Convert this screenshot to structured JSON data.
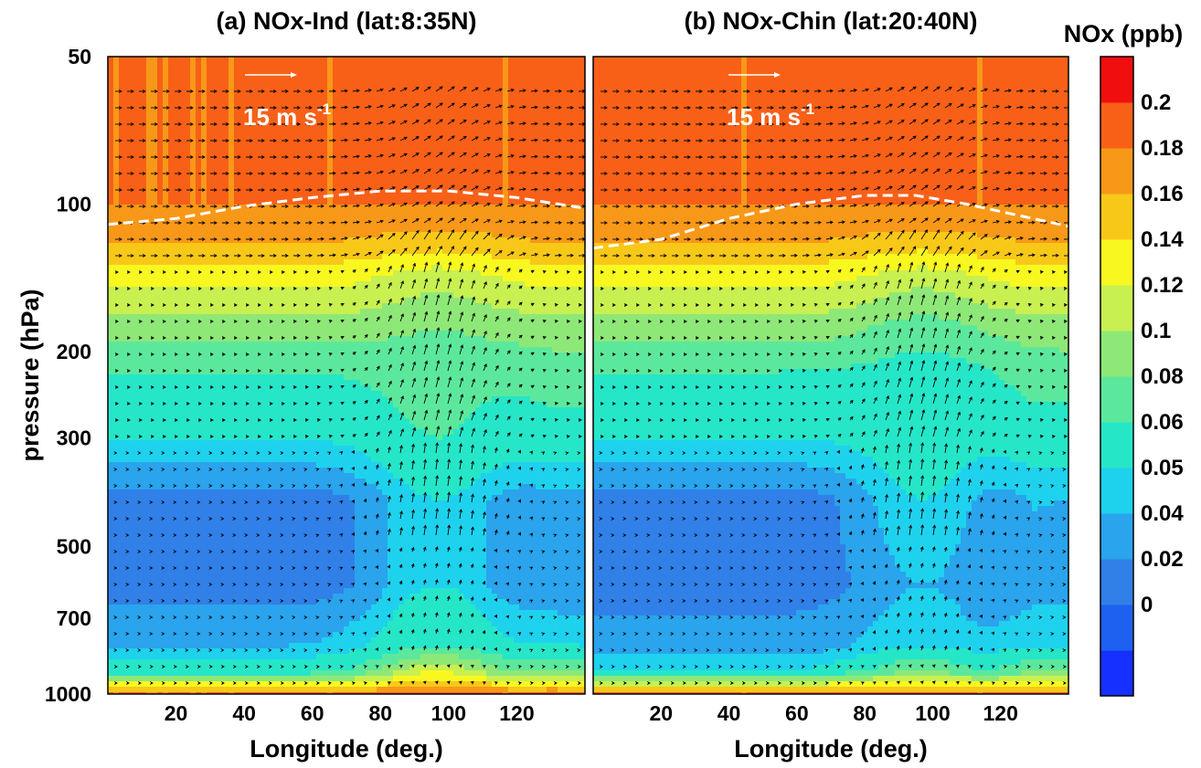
{
  "chart_data": [
    {
      "type": "heatmap",
      "title": "(a) NOx-Ind (lat:8:35N)",
      "xlabel": "Longitude (deg.)",
      "ylabel": "pressure (hPa)",
      "x_ticks": [
        20,
        40,
        60,
        80,
        100,
        120
      ],
      "y_ticks": [
        50,
        100,
        200,
        300,
        500,
        700,
        1000
      ],
      "xlim": [
        0,
        140
      ],
      "ylim": [
        1000,
        50
      ],
      "y_scale": "log",
      "reference_vector": {
        "label": "15 m s",
        "exponent": "-1",
        "value": 15
      },
      "overlays": [
        "wind vectors",
        "white dashed tropopause line"
      ],
      "tropopause_hPa": [
        {
          "x": 0,
          "p": 110
        },
        {
          "x": 20,
          "p": 107
        },
        {
          "x": 40,
          "p": 101
        },
        {
          "x": 60,
          "p": 97
        },
        {
          "x": 80,
          "p": 94
        },
        {
          "x": 100,
          "p": 94
        },
        {
          "x": 120,
          "p": 97
        },
        {
          "x": 140,
          "p": 102
        }
      ],
      "nox_ppb_profile": [
        {
          "p": 1000,
          "left": 0.2,
          "monsoon": 0.2,
          "right": 0.2
        },
        {
          "p": 900,
          "left": 0.07,
          "monsoon": 0.14,
          "right": 0.1
        },
        {
          "p": 800,
          "left": 0.05,
          "monsoon": 0.08,
          "right": 0.06
        },
        {
          "p": 600,
          "left": 0.035,
          "monsoon": 0.06,
          "right": 0.04
        },
        {
          "p": 400,
          "left": 0.035,
          "monsoon": 0.06,
          "right": 0.045
        },
        {
          "p": 300,
          "left": 0.06,
          "monsoon": 0.08,
          "right": 0.07
        },
        {
          "p": 220,
          "left": 0.08,
          "monsoon": 0.09,
          "right": 0.09
        },
        {
          "p": 180,
          "left": 0.11,
          "monsoon": 0.1,
          "right": 0.11
        },
        {
          "p": 140,
          "left": 0.15,
          "monsoon": 0.13,
          "right": 0.15
        },
        {
          "p": 120,
          "left": 0.18,
          "monsoon": 0.17,
          "right": 0.18
        },
        {
          "p": 100,
          "left": 0.2,
          "monsoon": 0.2,
          "right": 0.2
        },
        {
          "p": 50,
          "left": 0.2,
          "monsoon": 0.2,
          "right": 0.2
        }
      ]
    },
    {
      "type": "heatmap",
      "title": "(b) NOx-Chin (lat:20:40N)",
      "xlabel": "Longitude (deg.)",
      "ylabel": "pressure (hPa)",
      "x_ticks": [
        20,
        40,
        60,
        80,
        100,
        120
      ],
      "xlim": [
        0,
        140
      ],
      "ylim": [
        1000,
        50
      ],
      "y_scale": "log",
      "reference_vector": {
        "label": "15 m s",
        "exponent": "-1",
        "value": 15
      },
      "overlays": [
        "wind vectors",
        "white dashed tropopause line"
      ],
      "tropopause_hPa": [
        {
          "x": 0,
          "p": 123
        },
        {
          "x": 20,
          "p": 118
        },
        {
          "x": 40,
          "p": 107
        },
        {
          "x": 60,
          "p": 100
        },
        {
          "x": 80,
          "p": 96
        },
        {
          "x": 95,
          "p": 96
        },
        {
          "x": 110,
          "p": 100
        },
        {
          "x": 140,
          "p": 111
        }
      ],
      "nox_ppb_profile": [
        {
          "p": 1000,
          "left": 0.2,
          "monsoon": 0.2,
          "right": 0.2
        },
        {
          "p": 900,
          "left": 0.06,
          "monsoon": 0.1,
          "right": 0.1
        },
        {
          "p": 800,
          "left": 0.045,
          "monsoon": 0.06,
          "right": 0.06
        },
        {
          "p": 600,
          "left": 0.035,
          "monsoon": 0.05,
          "right": 0.045
        },
        {
          "p": 400,
          "left": 0.035,
          "monsoon": 0.06,
          "right": 0.05
        },
        {
          "p": 300,
          "left": 0.06,
          "monsoon": 0.07,
          "right": 0.07
        },
        {
          "p": 220,
          "left": 0.08,
          "monsoon": 0.07,
          "right": 0.09
        },
        {
          "p": 180,
          "left": 0.11,
          "monsoon": 0.09,
          "right": 0.11
        },
        {
          "p": 140,
          "left": 0.15,
          "monsoon": 0.13,
          "right": 0.15
        },
        {
          "p": 120,
          "left": 0.18,
          "monsoon": 0.17,
          "right": 0.18
        },
        {
          "p": 100,
          "left": 0.2,
          "monsoon": 0.2,
          "right": 0.2
        },
        {
          "p": 50,
          "left": 0.2,
          "monsoon": 0.2,
          "right": 0.2
        }
      ]
    }
  ],
  "colorbar": {
    "title": "NOx (ppb)",
    "levels": [
      "0",
      "0.02",
      "0.04",
      "0.05",
      "0.06",
      "0.08",
      "0.1",
      "0.12",
      "0.14",
      "0.16",
      "0.18",
      "0.2"
    ],
    "level_values": [
      0,
      0.02,
      0.04,
      0.05,
      0.06,
      0.08,
      0.1,
      0.12,
      0.14,
      0.16,
      0.18,
      0.2
    ],
    "colors": [
      "#1530ff",
      "#1e60f0",
      "#3080e8",
      "#2aa4ec",
      "#1ed2ee",
      "#26e6c8",
      "#5ce89c",
      "#8ee878",
      "#c8f050",
      "#f8f820",
      "#f8c818",
      "#f89818",
      "#f86018",
      "#f00e0e"
    ]
  }
}
